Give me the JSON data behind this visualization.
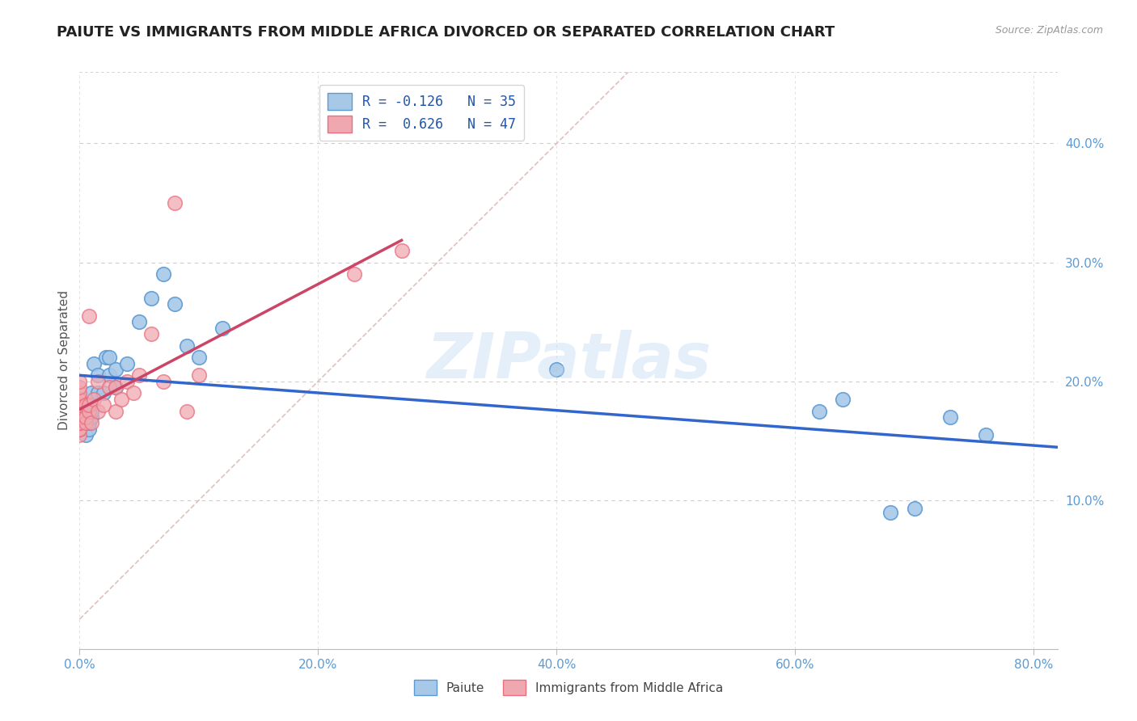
{
  "title": "PAIUTE VS IMMIGRANTS FROM MIDDLE AFRICA DIVORCED OR SEPARATED CORRELATION CHART",
  "source_text": "Source: ZipAtlas.com",
  "ylabel": "Divorced or Separated",
  "xlim": [
    0.0,
    0.82
  ],
  "ylim": [
    -0.025,
    0.46
  ],
  "xticks": [
    0.0,
    0.2,
    0.4,
    0.6,
    0.8
  ],
  "yticks": [
    0.1,
    0.2,
    0.3,
    0.4
  ],
  "ytick_labels": [
    "10.0%",
    "20.0%",
    "30.0%",
    "40.0%"
  ],
  "xtick_labels": [
    "0.0%",
    "20.0%",
    "40.0%",
    "60.0%",
    "80.0%"
  ],
  "paiute_R": -0.126,
  "paiute_N": 35,
  "immigrants_R": 0.626,
  "immigrants_N": 47,
  "blue_color": "#A8C8E8",
  "pink_color": "#F0A8B0",
  "blue_edge_color": "#5B9BD5",
  "pink_edge_color": "#E87080",
  "blue_line_color": "#3366CC",
  "pink_line_color": "#CC4466",
  "diag_color": "#E0B8B8",
  "watermark": "ZIPatlas",
  "paiute_x": [
    0.005,
    0.005,
    0.005,
    0.005,
    0.005,
    0.008,
    0.008,
    0.008,
    0.01,
    0.01,
    0.01,
    0.012,
    0.015,
    0.015,
    0.02,
    0.022,
    0.025,
    0.025,
    0.03,
    0.03,
    0.04,
    0.05,
    0.06,
    0.07,
    0.08,
    0.09,
    0.1,
    0.12,
    0.4,
    0.62,
    0.64,
    0.68,
    0.7,
    0.73,
    0.76
  ],
  "paiute_y": [
    0.17,
    0.17,
    0.17,
    0.17,
    0.155,
    0.16,
    0.165,
    0.17,
    0.17,
    0.175,
    0.19,
    0.215,
    0.205,
    0.19,
    0.19,
    0.22,
    0.205,
    0.22,
    0.195,
    0.21,
    0.215,
    0.25,
    0.27,
    0.29,
    0.265,
    0.23,
    0.22,
    0.245,
    0.21,
    0.175,
    0.185,
    0.09,
    0.093,
    0.17,
    0.155
  ],
  "immigrants_x": [
    0.0,
    0.0,
    0.0,
    0.0,
    0.0,
    0.0,
    0.0,
    0.0,
    0.0,
    0.0,
    0.0,
    0.0,
    0.0,
    0.0,
    0.0,
    0.0,
    0.0,
    0.0,
    0.0,
    0.0,
    0.0,
    0.0,
    0.005,
    0.005,
    0.005,
    0.008,
    0.008,
    0.008,
    0.01,
    0.012,
    0.015,
    0.015,
    0.02,
    0.025,
    0.03,
    0.03,
    0.035,
    0.04,
    0.045,
    0.05,
    0.06,
    0.07,
    0.08,
    0.09,
    0.1,
    0.23,
    0.27
  ],
  "immigrants_y": [
    0.155,
    0.16,
    0.16,
    0.16,
    0.165,
    0.165,
    0.165,
    0.17,
    0.17,
    0.17,
    0.17,
    0.17,
    0.17,
    0.175,
    0.175,
    0.18,
    0.18,
    0.185,
    0.185,
    0.19,
    0.195,
    0.2,
    0.165,
    0.17,
    0.18,
    0.175,
    0.18,
    0.255,
    0.165,
    0.185,
    0.175,
    0.2,
    0.18,
    0.195,
    0.175,
    0.195,
    0.185,
    0.2,
    0.19,
    0.205,
    0.24,
    0.2,
    0.35,
    0.175,
    0.205,
    0.29,
    0.31
  ],
  "title_fontsize": 13,
  "label_fontsize": 11,
  "tick_fontsize": 11,
  "legend_fontsize": 12
}
